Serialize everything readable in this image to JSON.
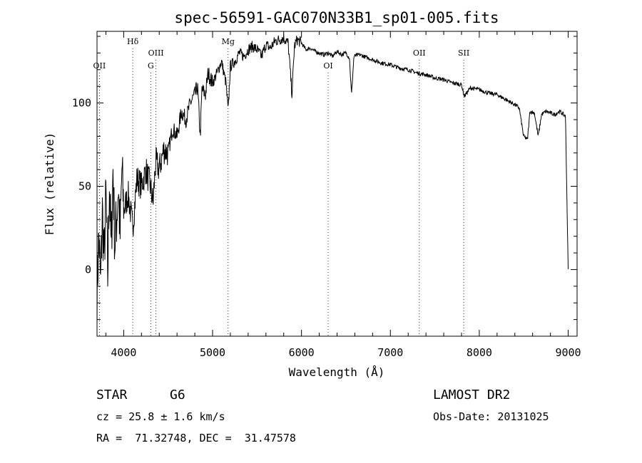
{
  "chart_data": {
    "type": "line",
    "title": "spec-56591-GAC070N33B1_sp01-005.fits",
    "xlabel": "Wavelength (Å)",
    "ylabel": "Flux (relative)",
    "xlim": [
      3700,
      9100
    ],
    "ylim": [
      -40,
      143
    ],
    "x_ticks": [
      4000,
      5000,
      6000,
      7000,
      8000,
      9000
    ],
    "y_ticks": [
      0,
      50,
      100
    ],
    "grid": false,
    "line_markers": [
      {
        "label": "OII",
        "x": 3727,
        "row": 3
      },
      {
        "label": "Hδ",
        "x": 4102,
        "row": 1
      },
      {
        "label": "G",
        "x": 4305,
        "row": 3
      },
      {
        "label": "OIII",
        "x": 4363,
        "row": 2
      },
      {
        "label": "Mg",
        "x": 5175,
        "row": 1
      },
      {
        "label": "OI",
        "x": 6300,
        "row": 3
      },
      {
        "label": "OII",
        "x": 7325,
        "row": 2
      },
      {
        "label": "SII",
        "x": 7825,
        "row": 2
      }
    ],
    "series": [
      {
        "x": [
          3700,
          3720,
          3740,
          3760,
          3780,
          3800,
          3820,
          3840,
          3860,
          3880,
          3900,
          3920,
          3940,
          3960,
          3980,
          4000,
          4050,
          4102,
          4150,
          4200,
          4250,
          4300,
          4330,
          4360,
          4400,
          4450,
          4500,
          4550,
          4600,
          4650,
          4700,
          4750,
          4800,
          4830,
          4861,
          4880,
          4920,
          4950,
          5000,
          5050,
          5100,
          5150,
          5175,
          5200,
          5250,
          5300,
          5350,
          5400,
          5450,
          5500,
          5550,
          5600,
          5650,
          5700,
          5750,
          5800,
          5850,
          5893,
          5920,
          5950,
          6000,
          6050,
          6100,
          6150,
          6200,
          6250,
          6300,
          6350,
          6400,
          6450,
          6500,
          6540,
          6563,
          6590,
          6650,
          6700,
          6800,
          6900,
          7000,
          7100,
          7200,
          7300,
          7400,
          7500,
          7600,
          7700,
          7800,
          7830,
          7900,
          8000,
          8100,
          8200,
          8300,
          8400,
          8450,
          8498,
          8542,
          8570,
          8620,
          8662,
          8700,
          8750,
          8800,
          8850,
          8900,
          8950,
          8970,
          8990,
          9000
        ],
        "values": [
          -15,
          20,
          -10,
          35,
          5,
          45,
          -5,
          55,
          10,
          60,
          15,
          30,
          50,
          20,
          60,
          35,
          45,
          25,
          55,
          50,
          60,
          50,
          40,
          65,
          60,
          72,
          70,
          85,
          80,
          95,
          90,
          100,
          105,
          110,
          80,
          108,
          105,
          118,
          112,
          118,
          125,
          112,
          95,
          122,
          125,
          130,
          128,
          132,
          134,
          132,
          128,
          135,
          133,
          137,
          138,
          139,
          136,
          105,
          134,
          138,
          136,
          132,
          133,
          131,
          130,
          129,
          130,
          128,
          131,
          129,
          130,
          127,
          105,
          128,
          129,
          128,
          126,
          124,
          123,
          121,
          120,
          118,
          117,
          115,
          114,
          112,
          111,
          104,
          109,
          108,
          106,
          105,
          102,
          99,
          97,
          80,
          78,
          95,
          94,
          80,
          93,
          95,
          94,
          93,
          95,
          93,
          92,
          30,
          0
        ]
      }
    ]
  },
  "info": {
    "object_class": "STAR",
    "subclass": "G6",
    "survey": "LAMOST DR2",
    "cz_label": "cz = ",
    "cz_value": "25.8",
    "cz_pm": "±",
    "cz_err": "1.6",
    "cz_unit": "km/s",
    "obs_date_label": "Obs-Date:",
    "obs_date": "20131025",
    "ra_label": "RA = ",
    "ra": "71.32748",
    "dec_label": "DEC = ",
    "dec": "31.47578"
  }
}
